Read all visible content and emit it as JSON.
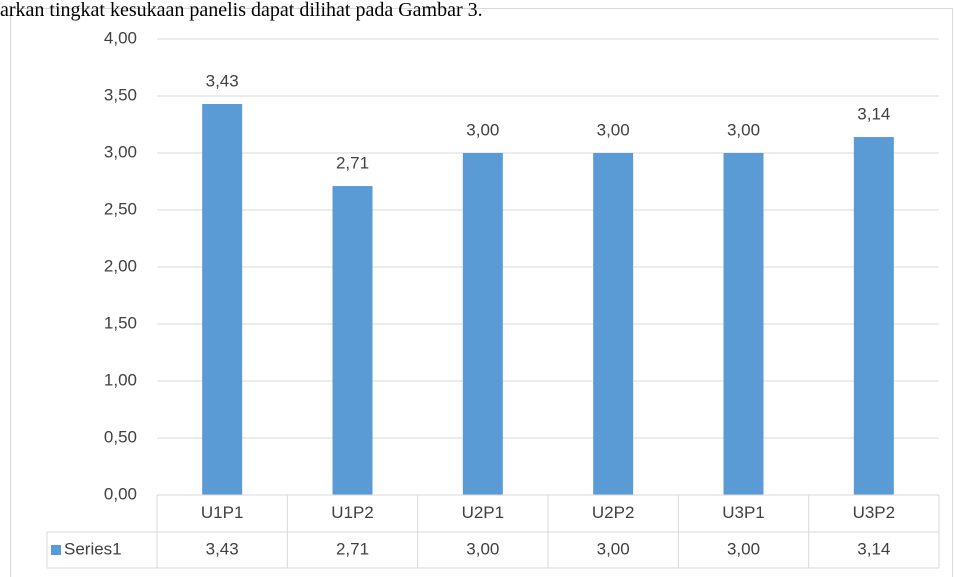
{
  "page_text": "arkan tingkat kesukaan panelis dapat dilihat pada Gambar 3.",
  "chart_data": {
    "type": "bar",
    "categories": [
      "U1P1",
      "U1P2",
      "U2P1",
      "U2P2",
      "U3P1",
      "U3P2"
    ],
    "series": [
      {
        "name": "Series1",
        "color": "#5b9bd5",
        "values": [
          3.43,
          2.71,
          3.0,
          3.0,
          3.0,
          3.14
        ],
        "value_labels": [
          "3,43",
          "2,71",
          "3,00",
          "3,00",
          "3,00",
          "3,14"
        ]
      }
    ],
    "ylim": [
      0,
      4
    ],
    "yticks": [
      {
        "value": 0,
        "label": "0,00"
      },
      {
        "value": 0.5,
        "label": "0,50"
      },
      {
        "value": 1,
        "label": "1,00"
      },
      {
        "value": 1.5,
        "label": "1,50"
      },
      {
        "value": 2,
        "label": "2,00"
      },
      {
        "value": 2.5,
        "label": "2,50"
      },
      {
        "value": 3,
        "label": "3,00"
      },
      {
        "value": 3.5,
        "label": "3,50"
      },
      {
        "value": 4,
        "label": "4,00"
      }
    ],
    "grid": true,
    "data_table": true
  }
}
